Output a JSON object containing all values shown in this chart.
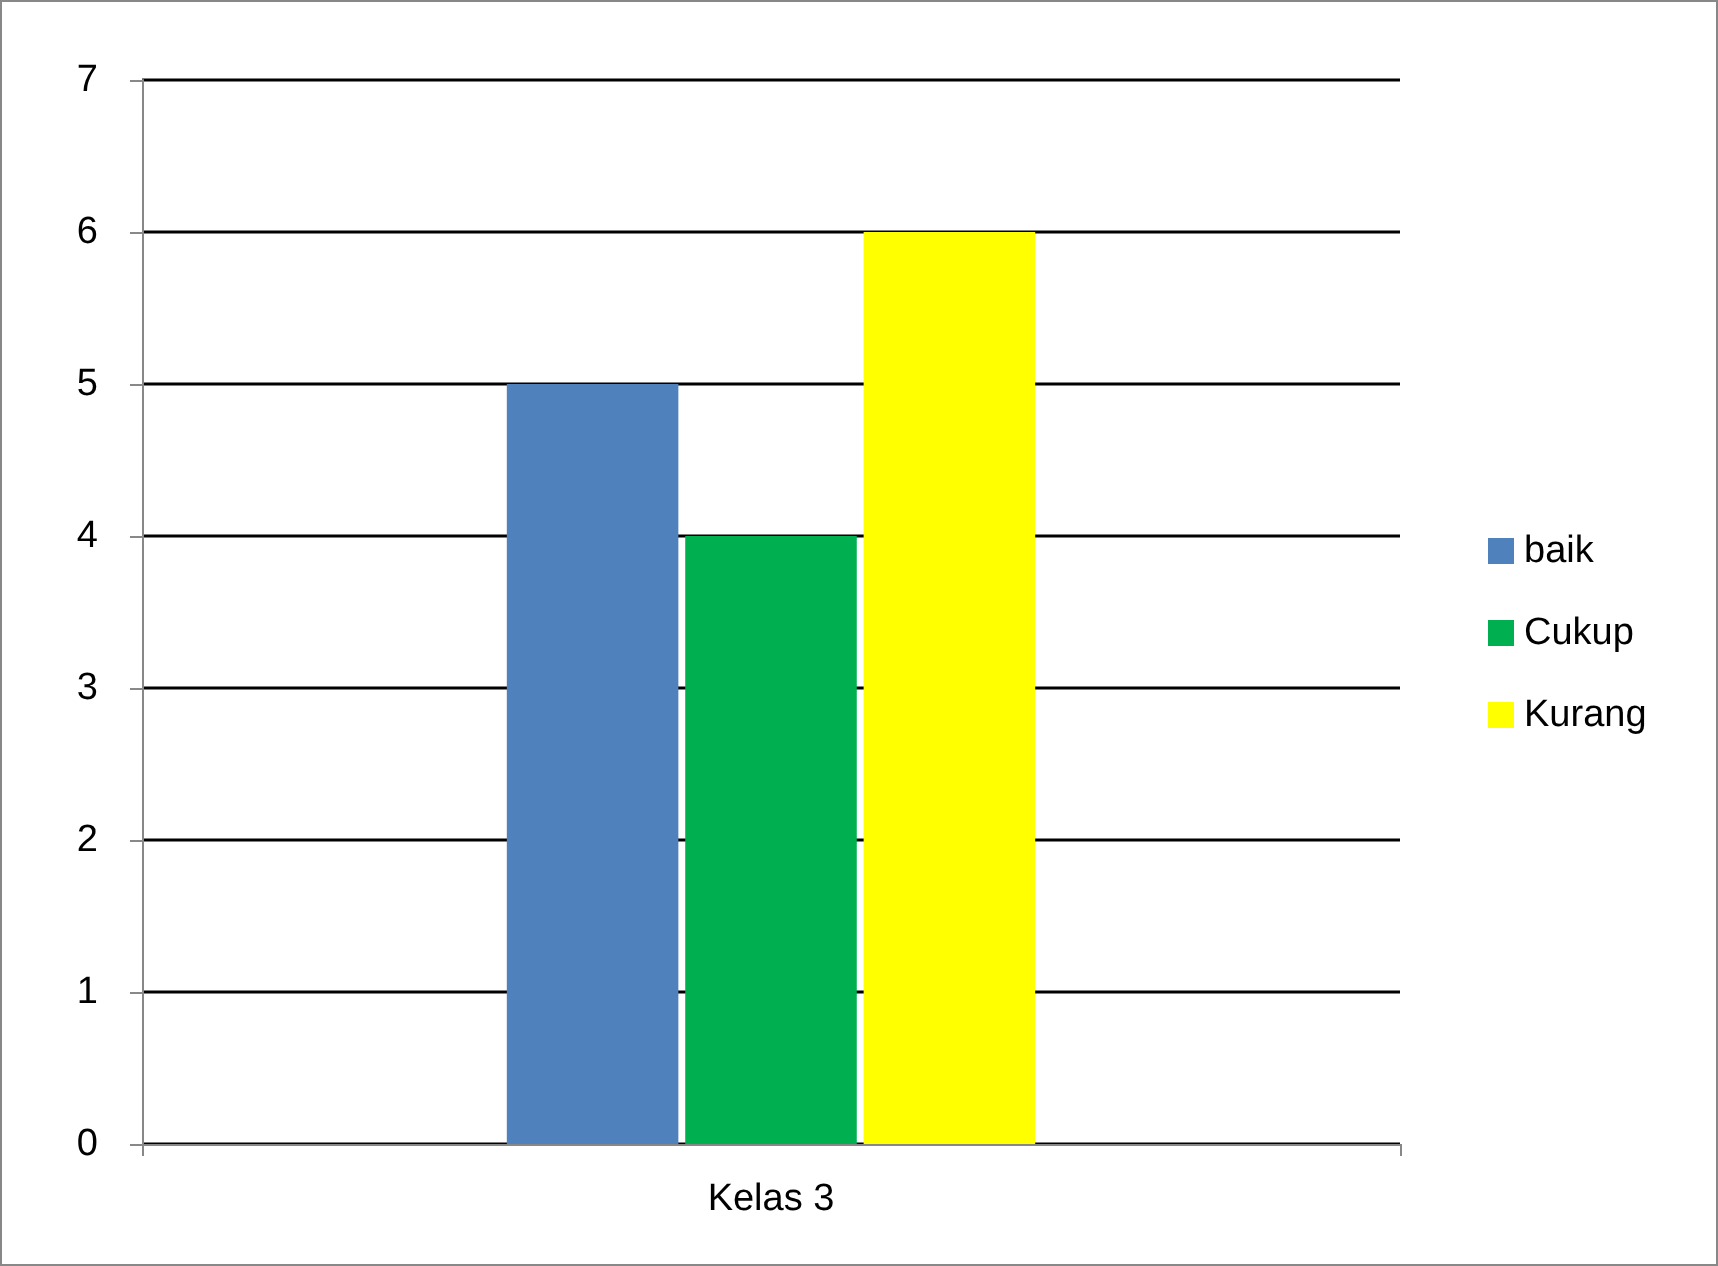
{
  "chart_data": {
    "type": "bar",
    "categories": [
      "Kelas 3"
    ],
    "series": [
      {
        "name": "baik",
        "color": "#4f81bd",
        "values": [
          5
        ]
      },
      {
        "name": "Cukup",
        "color": "#00b050",
        "values": [
          4
        ]
      },
      {
        "name": "Kurang",
        "color": "#ffff00",
        "values": [
          6
        ]
      }
    ],
    "ylim": [
      0,
      7
    ],
    "yticks": [
      0,
      1,
      2,
      3,
      4,
      5,
      6,
      7
    ],
    "grid": "y",
    "legend": "right"
  }
}
